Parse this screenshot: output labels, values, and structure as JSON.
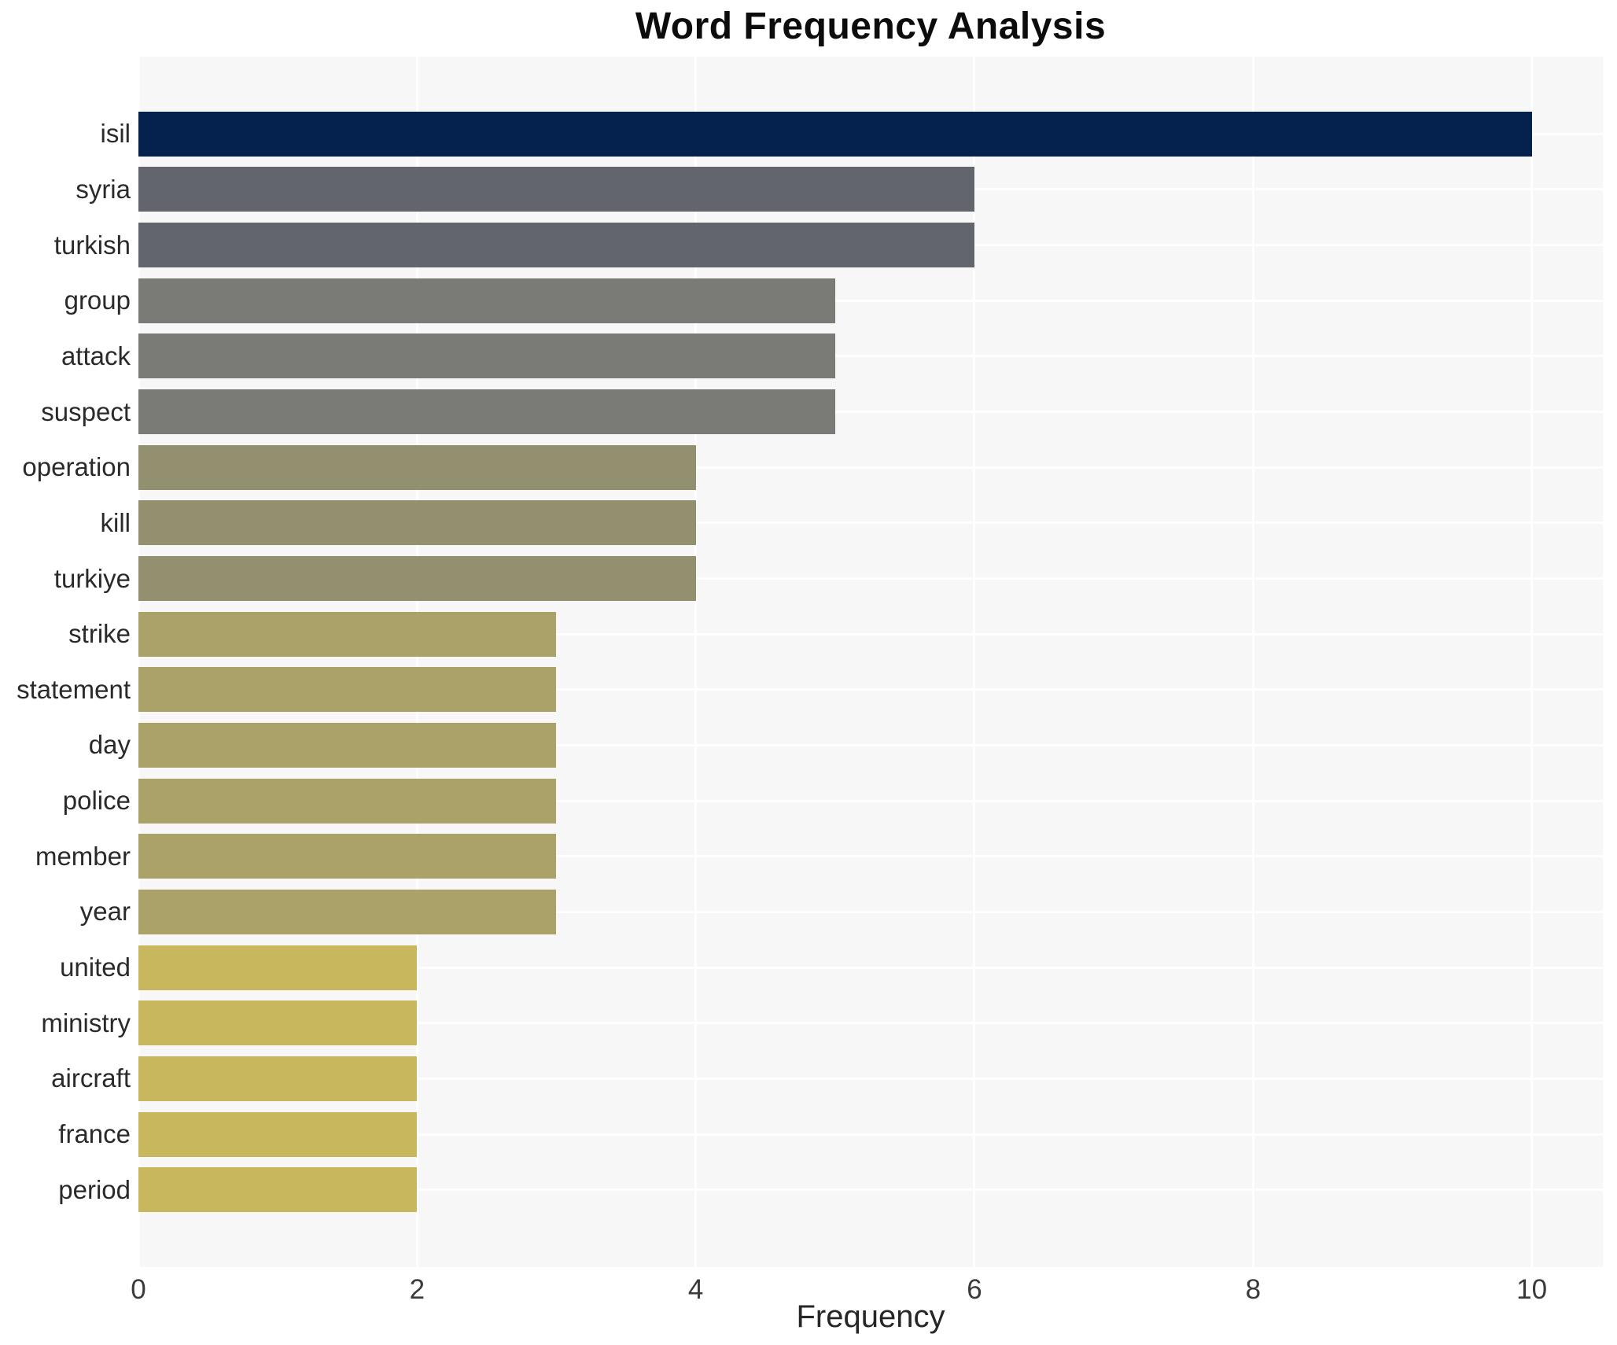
{
  "chart_data": {
    "type": "bar",
    "orientation": "horizontal",
    "title": "Word Frequency Analysis",
    "xlabel": "Frequency",
    "ylabel": "",
    "categories": [
      "isil",
      "syria",
      "turkish",
      "group",
      "attack",
      "suspect",
      "operation",
      "kill",
      "turkiye",
      "strike",
      "statement",
      "day",
      "police",
      "member",
      "year",
      "united",
      "ministry",
      "aircraft",
      "france",
      "period"
    ],
    "values": [
      10,
      6,
      6,
      5,
      5,
      5,
      4,
      4,
      4,
      3,
      3,
      3,
      3,
      3,
      3,
      2,
      2,
      2,
      2,
      2
    ],
    "bar_colors": [
      "#05224e",
      "#63656d",
      "#63656d",
      "#7a7a76",
      "#7a7a76",
      "#7a7a76",
      "#93906f",
      "#93906f",
      "#93906f",
      "#aba26a",
      "#aba26a",
      "#aba26a",
      "#aba26a",
      "#aba26a",
      "#aba26a",
      "#c9b75e",
      "#c9b75e",
      "#c9b75e",
      "#c9b75e",
      "#c9b75e"
    ],
    "xticks": [
      0,
      2,
      4,
      6,
      8,
      10
    ],
    "xlim": [
      0,
      10.51
    ],
    "grid": true,
    "legend_position": "none",
    "plot_bg_color": "#f7f7f8",
    "grid_color": "#ffffff",
    "page_bg_color": "#ffffff"
  }
}
